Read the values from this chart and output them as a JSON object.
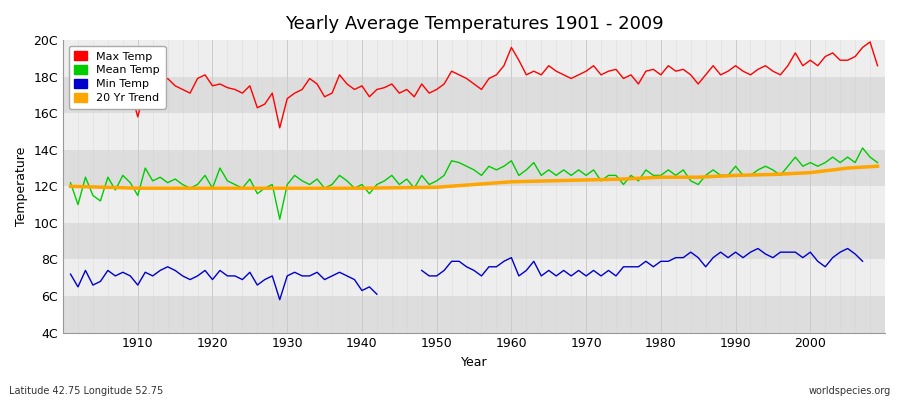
{
  "title": "Yearly Average Temperatures 1901 - 2009",
  "xlabel": "Year",
  "ylabel": "Temperature",
  "subtitle_lat": "Latitude 42.75 Longitude 52.75",
  "watermark": "worldspecies.org",
  "bg_color": "#ffffff",
  "plot_bg_color": "#eeeeee",
  "years": [
    1901,
    1902,
    1903,
    1904,
    1905,
    1906,
    1907,
    1908,
    1909,
    1910,
    1911,
    1912,
    1913,
    1914,
    1915,
    1916,
    1917,
    1918,
    1919,
    1920,
    1921,
    1922,
    1923,
    1924,
    1925,
    1926,
    1927,
    1928,
    1929,
    1930,
    1931,
    1932,
    1933,
    1934,
    1935,
    1936,
    1937,
    1938,
    1939,
    1940,
    1941,
    1942,
    1943,
    1944,
    1945,
    1946,
    1947,
    1948,
    1949,
    1950,
    1951,
    1952,
    1953,
    1954,
    1955,
    1956,
    1957,
    1958,
    1959,
    1960,
    1961,
    1962,
    1963,
    1964,
    1965,
    1966,
    1967,
    1968,
    1969,
    1970,
    1971,
    1972,
    1973,
    1974,
    1975,
    1976,
    1977,
    1978,
    1979,
    1980,
    1981,
    1982,
    1983,
    1984,
    1985,
    1986,
    1987,
    1988,
    1989,
    1990,
    1991,
    1992,
    1993,
    1994,
    1995,
    1996,
    1997,
    1998,
    1999,
    2000,
    2001,
    2002,
    2003,
    2004,
    2005,
    2006,
    2007,
    2008,
    2009
  ],
  "max_temp": [
    17.9,
    17.0,
    17.5,
    17.2,
    16.2,
    17.3,
    17.1,
    17.5,
    17.3,
    15.8,
    17.4,
    17.2,
    17.6,
    17.9,
    17.5,
    17.3,
    17.1,
    17.9,
    18.1,
    17.5,
    17.6,
    17.4,
    17.3,
    17.1,
    17.5,
    16.3,
    16.5,
    17.1,
    15.2,
    16.8,
    17.1,
    17.3,
    17.9,
    17.6,
    16.9,
    17.1,
    18.1,
    17.6,
    17.3,
    17.5,
    16.9,
    17.3,
    17.4,
    17.6,
    17.1,
    17.3,
    16.9,
    17.6,
    17.1,
    17.3,
    17.6,
    18.3,
    18.1,
    17.9,
    17.6,
    17.3,
    17.9,
    18.1,
    18.6,
    19.6,
    18.9,
    18.1,
    18.3,
    18.1,
    18.6,
    18.3,
    18.1,
    17.9,
    18.1,
    18.3,
    18.6,
    18.1,
    18.3,
    18.4,
    17.9,
    18.1,
    17.6,
    18.3,
    18.4,
    18.1,
    18.6,
    18.3,
    18.4,
    18.1,
    17.6,
    18.1,
    18.6,
    18.1,
    18.3,
    18.6,
    18.3,
    18.1,
    18.4,
    18.6,
    18.3,
    18.1,
    18.6,
    19.3,
    18.6,
    18.9,
    18.6,
    19.1,
    19.3,
    18.9,
    18.9,
    19.1,
    19.6,
    19.9,
    18.6
  ],
  "mean_temp": [
    12.2,
    11.0,
    12.5,
    11.5,
    11.2,
    12.5,
    11.8,
    12.6,
    12.2,
    11.5,
    13.0,
    12.3,
    12.5,
    12.2,
    12.4,
    12.1,
    11.9,
    12.1,
    12.6,
    11.9,
    13.0,
    12.3,
    12.1,
    11.9,
    12.4,
    11.6,
    11.9,
    12.1,
    10.2,
    12.1,
    12.6,
    12.3,
    12.1,
    12.4,
    11.9,
    12.1,
    12.6,
    12.3,
    11.9,
    12.1,
    11.6,
    12.1,
    12.3,
    12.6,
    12.1,
    12.4,
    11.9,
    12.6,
    12.1,
    12.3,
    12.6,
    13.4,
    13.3,
    13.1,
    12.9,
    12.6,
    13.1,
    12.9,
    13.1,
    13.4,
    12.6,
    12.9,
    13.3,
    12.6,
    12.9,
    12.6,
    12.9,
    12.6,
    12.9,
    12.6,
    12.9,
    12.3,
    12.6,
    12.6,
    12.1,
    12.6,
    12.3,
    12.9,
    12.6,
    12.6,
    12.9,
    12.6,
    12.9,
    12.3,
    12.1,
    12.6,
    12.9,
    12.6,
    12.6,
    13.1,
    12.6,
    12.6,
    12.9,
    13.1,
    12.9,
    12.6,
    13.1,
    13.6,
    13.1,
    13.3,
    13.1,
    13.3,
    13.6,
    13.3,
    13.6,
    13.3,
    14.1,
    13.6,
    13.3
  ],
  "min_temp": [
    7.2,
    6.5,
    7.4,
    6.6,
    6.8,
    7.4,
    7.1,
    7.3,
    7.1,
    6.6,
    7.3,
    7.1,
    7.4,
    7.6,
    7.4,
    7.1,
    6.9,
    7.1,
    7.4,
    6.9,
    7.4,
    7.1,
    7.1,
    6.9,
    7.3,
    6.6,
    6.9,
    7.1,
    5.8,
    7.1,
    7.3,
    7.1,
    7.1,
    7.3,
    6.9,
    7.1,
    7.3,
    7.1,
    6.9,
    6.3,
    6.5,
    6.1,
    null,
    null,
    null,
    null,
    null,
    7.4,
    7.1,
    7.1,
    7.4,
    7.9,
    7.9,
    7.6,
    7.4,
    7.1,
    7.6,
    7.6,
    7.9,
    8.1,
    7.1,
    7.4,
    7.9,
    7.1,
    7.4,
    7.1,
    7.4,
    7.1,
    7.4,
    7.1,
    7.4,
    7.1,
    7.4,
    7.1,
    7.6,
    7.6,
    7.6,
    7.9,
    7.6,
    7.9,
    7.9,
    8.1,
    8.1,
    8.4,
    8.1,
    7.6,
    8.1,
    8.4,
    8.1,
    8.4,
    8.1,
    8.4,
    8.6,
    8.3,
    8.1,
    8.4,
    8.4,
    8.4,
    8.1,
    8.4,
    7.9,
    7.6,
    8.1,
    8.4,
    8.6,
    8.3,
    7.9
  ],
  "min_missing": [
    1943,
    1944,
    1945,
    1946,
    1947
  ],
  "min_dot_years": [
    1940,
    1941,
    1942
  ],
  "min_dot_vals": [
    6.3,
    6.5,
    6.1
  ],
  "trend_years": [
    1901,
    1910,
    1920,
    1930,
    1940,
    1950,
    1955,
    1960,
    1965,
    1970,
    1975,
    1980,
    1985,
    1990,
    1995,
    2000,
    2005,
    2009
  ],
  "trend_values": [
    12.0,
    11.9,
    11.9,
    11.9,
    11.9,
    11.95,
    12.1,
    12.25,
    12.3,
    12.35,
    12.4,
    12.5,
    12.5,
    12.6,
    12.65,
    12.75,
    13.0,
    13.1
  ],
  "ylim": [
    4,
    20
  ],
  "yticks": [
    4,
    6,
    8,
    10,
    12,
    14,
    16,
    18,
    20
  ],
  "ytick_labels": [
    "4C",
    "6C",
    "8C",
    "10C",
    "12C",
    "14C",
    "16C",
    "18C",
    "20C"
  ],
  "xlim": [
    1901,
    2009
  ],
  "xticks": [
    1910,
    1920,
    1930,
    1940,
    1950,
    1960,
    1970,
    1980,
    1990,
    2000
  ],
  "max_color": "#ff0000",
  "mean_color": "#00cc00",
  "min_color": "#0000cc",
  "trend_color": "#ffa500",
  "legend_labels": [
    "Max Temp",
    "Mean Temp",
    "Min Temp",
    "20 Yr Trend"
  ],
  "legend_colors": [
    "#ff0000",
    "#00cc00",
    "#0000cc",
    "#ffa500"
  ],
  "grid_color": "#cccccc",
  "band_color": "#dddddd"
}
